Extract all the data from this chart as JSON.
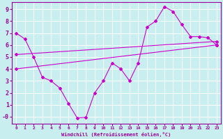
{
  "xlabel": "Windchill (Refroidissement éolien,°C)",
  "background_color": "#c8eef0",
  "grid_color": "#ffffff",
  "line_color": "#cc00cc",
  "xlim": [
    -0.5,
    23.5
  ],
  "ylim": [
    -0.6,
    9.6
  ],
  "xticks": [
    0,
    1,
    2,
    3,
    4,
    5,
    6,
    7,
    8,
    9,
    10,
    11,
    12,
    13,
    14,
    15,
    16,
    17,
    18,
    19,
    20,
    21,
    22,
    23
  ],
  "yticks": [
    0,
    1,
    2,
    3,
    4,
    5,
    6,
    7,
    8,
    9
  ],
  "ytick_labels": [
    "-0",
    "1",
    "2",
    "3",
    "4",
    "5",
    "6",
    "7",
    "8",
    "9"
  ],
  "series": [
    {
      "x": [
        0,
        1,
        2,
        3,
        4,
        5,
        6,
        7,
        8,
        9,
        10,
        11,
        12,
        13,
        14,
        15,
        16,
        17,
        18,
        19,
        20,
        21,
        22,
        23
      ],
      "y": [
        7.0,
        6.5,
        5.0,
        3.3,
        3.0,
        2.4,
        1.1,
        -0.1,
        -0.05,
        2.0,
        3.0,
        4.5,
        4.0,
        3.0,
        4.5,
        7.5,
        8.0,
        9.2,
        8.8,
        7.7,
        6.7,
        6.7,
        6.6,
        6.0
      ]
    },
    {
      "x": [
        0,
        23
      ],
      "y": [
        5.2,
        6.3
      ]
    },
    {
      "x": [
        0,
        23
      ],
      "y": [
        4.0,
        6.0
      ]
    }
  ]
}
